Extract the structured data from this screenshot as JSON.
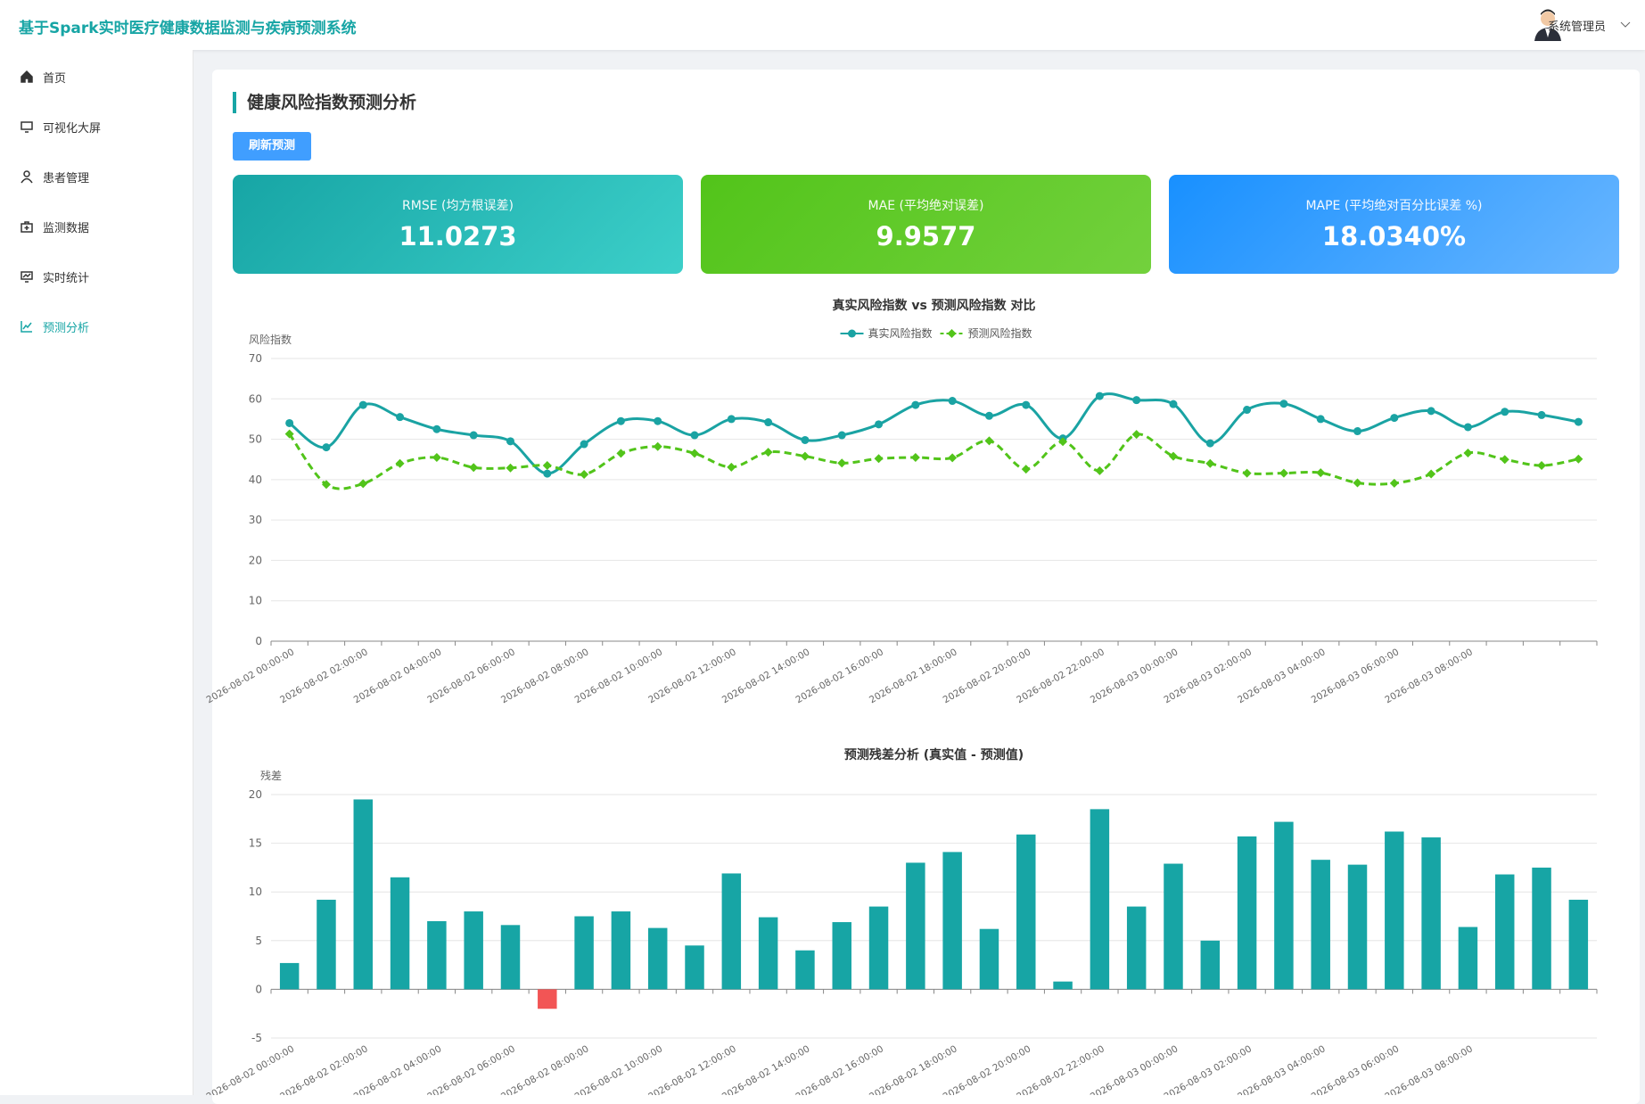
{
  "header": {
    "title": "基于Spark实时医疗健康数据监测与疾病预测系统",
    "user": "系统管理员"
  },
  "sidebar": {
    "items": [
      "首页",
      "可视化大屏",
      "患者管理",
      "监测数据",
      "实时统计",
      "预测分析"
    ],
    "active": 5
  },
  "page": {
    "title": "健康风险指数预测分析",
    "button": "刷新预测"
  },
  "metrics": [
    {
      "label": "RMSE (均方根误差)",
      "value": "11.0273"
    },
    {
      "label": "MAE (平均绝对误差)",
      "value": "9.9577"
    },
    {
      "label": "MAPE (平均绝对百分比误差 %)",
      "value": "18.0340%"
    }
  ],
  "chart_data": [
    {
      "type": "line",
      "title": "真实风险指数 vs 预测风险指数 对比",
      "y_label": "风险指数",
      "categories": [
        "2026-08-02 00:00:00",
        null,
        "2026-08-02 02:00:00",
        null,
        "2026-08-02 04:00:00",
        null,
        "2026-08-02 06:00:00",
        null,
        "2026-08-02 08:00:00",
        null,
        "2026-08-02 10:00:00",
        null,
        "2026-08-02 12:00:00",
        null,
        "2026-08-02 14:00:00",
        null,
        "2026-08-02 16:00:00",
        null,
        "2026-08-02 18:00:00",
        null,
        "2026-08-02 20:00:00",
        null,
        "2026-08-02 22:00:00",
        null,
        "2026-08-03 00:00:00",
        null,
        "2026-08-03 02:00:00",
        null,
        "2026-08-03 04:00:00",
        null,
        "2026-08-03 06:00:00",
        null,
        "2026-08-03 08:00:00",
        null,
        null,
        null
      ],
      "series": [
        {
          "name": "真实风险指数",
          "color": "#1aa3a3",
          "line_style": "solid",
          "marker": "circle",
          "values": [
            54,
            48,
            58.5,
            55.5,
            52.5,
            51,
            49.5,
            41.5,
            48.8,
            54.5,
            54.5,
            51,
            55,
            54.2,
            49.8,
            51,
            53.7,
            58.5,
            59.5,
            55.8,
            58.5,
            50.2,
            60.7,
            59.7,
            58.7,
            49,
            57.3,
            58.8,
            55,
            52,
            55.3,
            57,
            53,
            56.8,
            56,
            54.3
          ]
        },
        {
          "name": "预测风险指数",
          "color": "#52c41a",
          "line_style": "dashed",
          "marker": "diamond",
          "values": [
            51.3,
            38.8,
            39,
            44,
            45.5,
            43,
            42.9,
            43.5,
            41.3,
            46.5,
            48.2,
            46.5,
            43.1,
            46.8,
            45.8,
            44.1,
            45.2,
            45.5,
            45.4,
            49.6,
            42.6,
            49.4,
            42.2,
            51.2,
            45.8,
            44,
            41.6,
            41.6,
            41.7,
            39.2,
            39.1,
            41.4,
            46.6,
            45,
            43.5,
            45.1
          ]
        }
      ],
      "ylim": [
        0,
        70
      ],
      "yticks": [
        0,
        10,
        20,
        30,
        40,
        50,
        60,
        70
      ],
      "grid": true,
      "legend": "top"
    },
    {
      "type": "bar",
      "title": "预测残差分析 (真实值 - 预测值)",
      "y_label": "残差",
      "categories": [
        "2026-08-02 00:00:00",
        null,
        "2026-08-02 02:00:00",
        null,
        "2026-08-02 04:00:00",
        null,
        "2026-08-02 06:00:00",
        null,
        "2026-08-02 08:00:00",
        null,
        "2026-08-02 10:00:00",
        null,
        "2026-08-02 12:00:00",
        null,
        "2026-08-02 14:00:00",
        null,
        "2026-08-02 16:00:00",
        null,
        "2026-08-02 18:00:00",
        null,
        "2026-08-02 20:00:00",
        null,
        "2026-08-02 22:00:00",
        null,
        "2026-08-03 00:00:00",
        null,
        "2026-08-03 02:00:00",
        null,
        "2026-08-03 04:00:00",
        null,
        "2026-08-03 06:00:00",
        null,
        "2026-08-03 08:00:00",
        null,
        null,
        null
      ],
      "values": [
        2.7,
        9.2,
        19.5,
        11.5,
        7,
        8,
        6.6,
        -2,
        7.5,
        8,
        6.3,
        4.5,
        11.9,
        7.4,
        4,
        6.9,
        8.5,
        13,
        14.1,
        6.2,
        15.9,
        0.8,
        18.5,
        8.5,
        12.9,
        5,
        15.7,
        17.2,
        13.3,
        12.8,
        16.2,
        15.6,
        6.4,
        11.8,
        12.5,
        9.2
      ],
      "color": "#17a5a5",
      "negative_color": "#f25555",
      "ylim": [
        -5,
        20
      ],
      "yticks": [
        -5,
        0,
        5,
        10,
        15,
        20
      ],
      "grid": true
    }
  ]
}
